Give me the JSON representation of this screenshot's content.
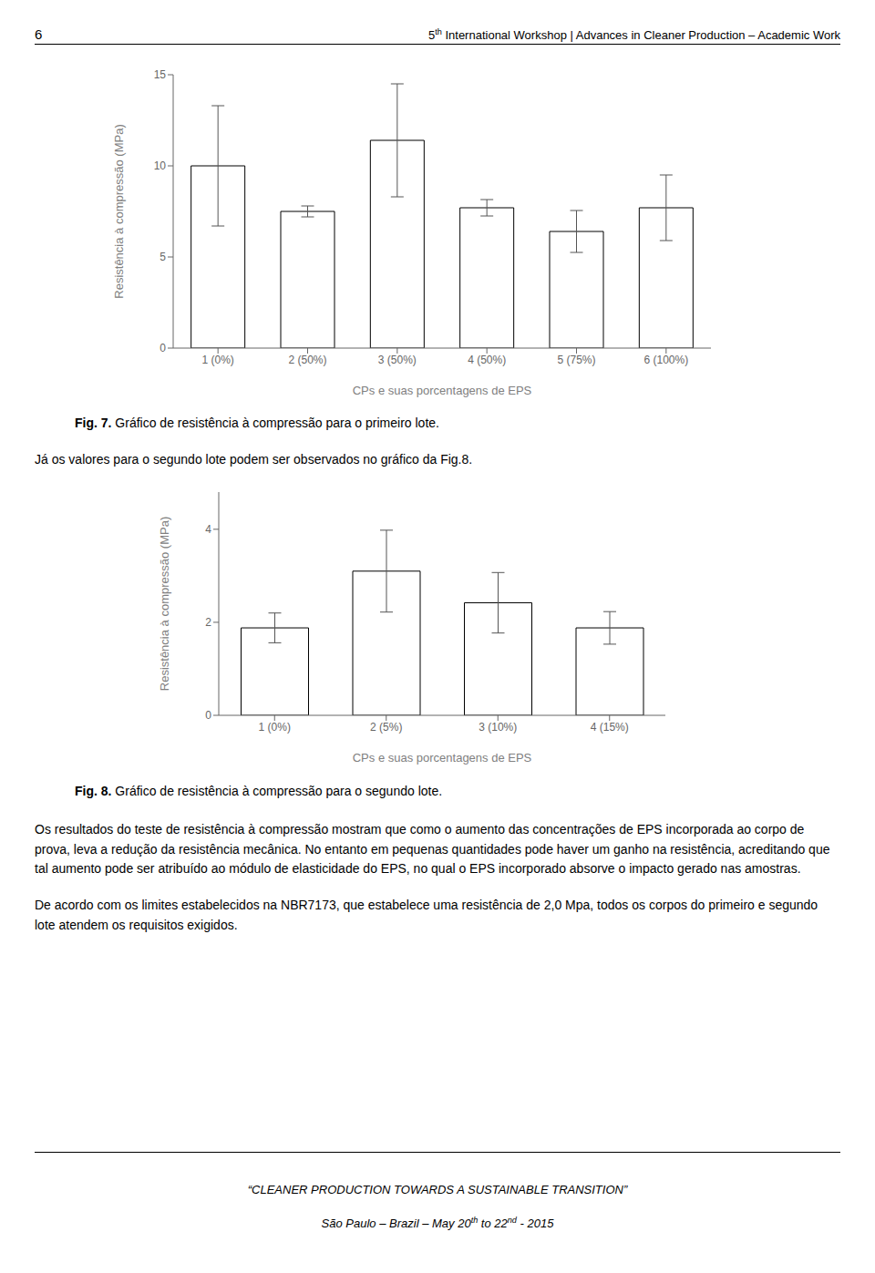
{
  "header_left": "6",
  "header_center_parts": [
    "5",
    "th",
    " International Workshop | Advances in Cleaner Production – Academic Work"
  ],
  "chart_data": [
    {
      "type": "bar",
      "categories": [
        "1 (0%)",
        "2 (50%)",
        "3 (50%)",
        "4 (50%)",
        "5 (75%)",
        "6 (100%)"
      ],
      "values": [
        10.0,
        7.5,
        11.4,
        7.7,
        6.4,
        7.7
      ],
      "errors": [
        3.3,
        0.3,
        3.1,
        0.45,
        1.15,
        1.8
      ],
      "ylabel": "Resistência à compressão (MPa)",
      "xlabel": "CPs e suas porcentagens de EPS",
      "ylim": [
        0,
        15
      ],
      "yticks": [
        0,
        5,
        10,
        15
      ],
      "color": "#ffffff",
      "grid": false,
      "fig_label": "Fig. 7.",
      "fig_caption": "Gráfico de resistência à compressão para o primeiro lote."
    },
    {
      "type": "bar",
      "categories": [
        "1 (0%)",
        "2 (5%)",
        "3 (10%)",
        "4 (15%)"
      ],
      "values": [
        1.88,
        3.1,
        2.42,
        1.88
      ],
      "errors": [
        0.32,
        0.88,
        0.65,
        0.35
      ],
      "ylabel": "Resistência à compressão (MPa)",
      "xlabel": "CPs e suas porcentagens de EPS",
      "ylim": [
        0,
        4.8
      ],
      "yticks": [
        0,
        2,
        4
      ],
      "color": "#ffffff",
      "grid": false,
      "fig_label": "Fig. 8.",
      "fig_caption": "Gráfico de resistência à compressão para o segundo lote."
    }
  ],
  "text_between": "Já os valores para o segundo lote podem ser observados no gráfico da Fig.8.",
  "body_text": "Os resultados do teste de resistência à compressão mostram que como o aumento das concentrações de EPS incorporada ao corpo de prova, leva a redução da resistência mecânica. No entanto em pequenas quantidades pode haver um ganho na resistência, acreditando que tal aumento pode ser atribuído ao módulo de elasticidade do EPS, no qual o EPS incorporado absorve o impacto gerado nas amostras.",
  "body_text2": "De acordo com os limites estabelecidos na NBR7173, que estabelece uma resistência de 2,0 Mpa, todos os corpos do primeiro e segundo lote atendem os requisitos exigidos.",
  "footer_line1": "“CLEANER PRODUCTION TOWARDS A SUSTAINABLE TRANSITION”",
  "footer_line2_parts": [
    "São Paulo – Brazil – May 20",
    "th",
    " to 22",
    "nd",
    " - 2015"
  ]
}
